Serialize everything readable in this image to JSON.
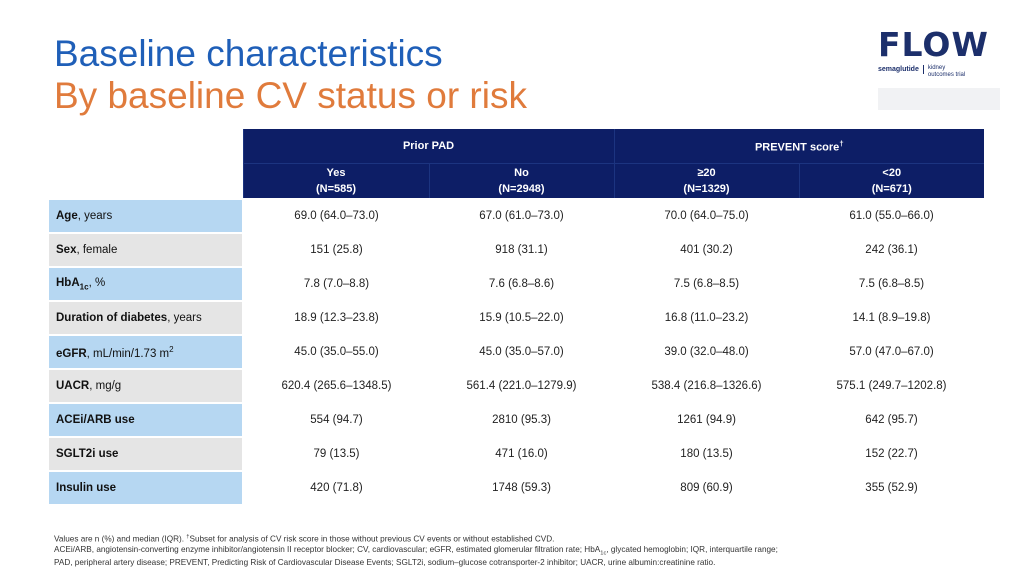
{
  "title": {
    "line1": "Baseline characteristics",
    "line2": "By baseline CV status or risk"
  },
  "logo": {
    "word": "FLOW",
    "brand": "semaglutide",
    "tagline1": "kidney",
    "tagline2": "outcomes trial"
  },
  "table": {
    "group_headers": {
      "prior_pad": "Prior PAD",
      "prevent": "PREVENT score",
      "prevent_mark": "†"
    },
    "columns": [
      {
        "label": "Yes",
        "n": "(N=585)"
      },
      {
        "label": "No",
        "n": "(N=2948)"
      },
      {
        "label": "≥20",
        "n": "(N=1329)"
      },
      {
        "label": "<20",
        "n": "(N=671)"
      }
    ],
    "rows": [
      {
        "bold": "Age",
        "rest": ", years",
        "values": [
          "69.0 (64.0–73.0)",
          "67.0 (61.0–73.0)",
          "70.0 (64.0–75.0)",
          "61.0 (55.0–66.0)"
        ]
      },
      {
        "bold": "Sex",
        "rest": ", female",
        "values": [
          "151 (25.8)",
          "918 (31.1)",
          "401 (30.2)",
          "242 (36.1)"
        ]
      },
      {
        "bold": "HbA",
        "sub": "1c",
        "rest": ", %",
        "values": [
          "7.8 (7.0–8.8)",
          "7.6 (6.8–8.6)",
          "7.5 (6.8–8.5)",
          "7.5 (6.8–8.5)"
        ]
      },
      {
        "bold": "Duration of diabetes",
        "rest": ", years",
        "values": [
          "18.9 (12.3–23.8)",
          "15.9 (10.5–22.0)",
          "16.8 (11.0–23.2)",
          "14.1 (8.9–19.8)"
        ]
      },
      {
        "bold": "eGFR",
        "rest": ", mL/min/1.73 m",
        "sup": "2",
        "values": [
          "45.0 (35.0–55.0)",
          "45.0 (35.0–57.0)",
          "39.0 (32.0–48.0)",
          "57.0 (47.0–67.0)"
        ]
      },
      {
        "bold": "UACR",
        "rest": ", mg/g",
        "values": [
          "620.4 (265.6–1348.5)",
          "561.4 (221.0–1279.9)",
          "538.4 (216.8–1326.6)",
          "575.1 (249.7–1202.8)"
        ]
      },
      {
        "bold": "ACEi/ARB use",
        "rest": "",
        "values": [
          "554 (94.7)",
          "2810 (95.3)",
          "1261 (94.9)",
          "642 (95.7)"
        ]
      },
      {
        "bold": "SGLT2i use",
        "rest": "",
        "values": [
          "79 (13.5)",
          "471 (16.0)",
          "180 (13.5)",
          "152 (22.7)"
        ]
      },
      {
        "bold": "Insulin use",
        "rest": "",
        "values": [
          "420 (71.8)",
          "1748 (59.3)",
          "809 (60.9)",
          "355 (52.9)"
        ]
      }
    ]
  },
  "footnote": {
    "line1a": "Values are n (%) and median (IQR). ",
    "line1mark": "†",
    "line1b": "Subset for analysis of CV risk score in those without previous CV events or without established CVD.",
    "line2a": "ACEi/ARB, angiotensin-converting enzyme inhibitor/angiotensin II receptor blocker; CV, cardiovascular; eGFR, estimated glomerular filtration rate; HbA",
    "line2sub": "1c",
    "line2b": ", glycated hemoglobin; IQR, interquartile range;",
    "line3": "PAD, peripheral artery disease; PREVENT, Predicting Risk of Cardiovascular Disease Events; SGLT2i, sodium–glucose cotransporter-2 inhibitor; UACR, urine albumin:creatinine ratio."
  },
  "colors": {
    "title_blue": "#1f5fb8",
    "title_orange": "#e07b3c",
    "header_navy": "#0d1e66",
    "label_blue": "#b6d7f2",
    "label_grey": "#e5e5e5"
  }
}
